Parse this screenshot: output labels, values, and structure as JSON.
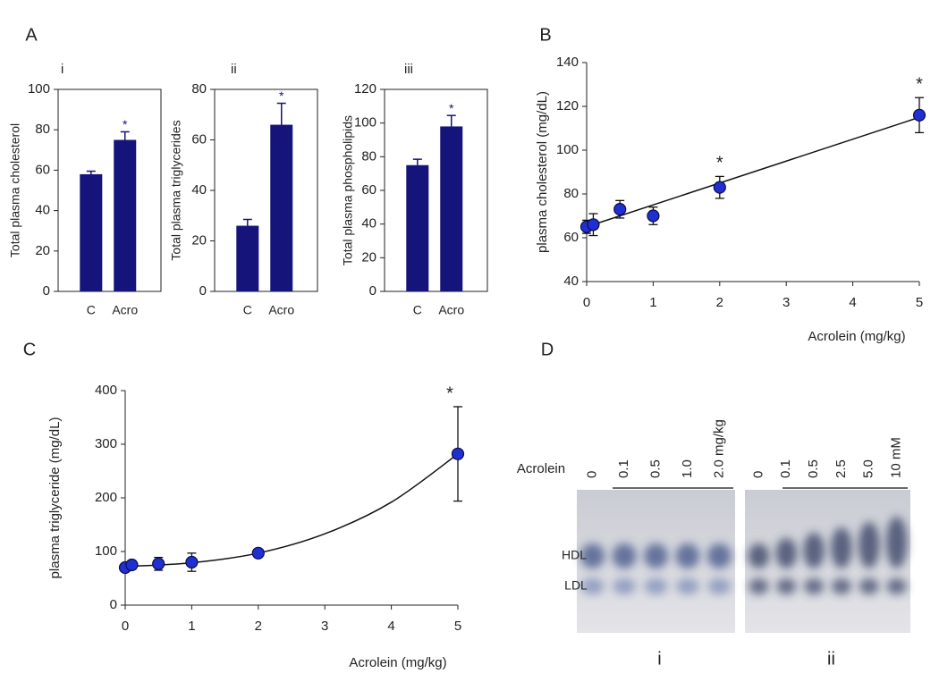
{
  "chart_data": [
    {
      "type": "bar",
      "panel": "A",
      "subtitle": "i",
      "y_label": "Total plasma cholesterol",
      "categories": [
        "C",
        "Acro"
      ],
      "values": [
        58,
        75
      ],
      "errors": [
        1.5,
        4
      ],
      "significance": [
        null,
        "*"
      ],
      "color": "#14147a",
      "ylim": [
        0,
        100
      ],
      "yticks": [
        0,
        20,
        40,
        60,
        80,
        100
      ]
    },
    {
      "type": "bar",
      "subtitle": "ii",
      "y_label": "Total plasma triglycerides",
      "categories": [
        "C",
        "Acro"
      ],
      "values": [
        26,
        66
      ],
      "errors": [
        2.5,
        8.5
      ],
      "significance": [
        null,
        "*"
      ],
      "color": "#14147a",
      "ylim": [
        0,
        80
      ],
      "yticks": [
        0,
        20,
        40,
        60,
        80
      ]
    },
    {
      "type": "bar",
      "subtitle": "iii",
      "y_label": "Total plasma phospholipids",
      "categories": [
        "C",
        "Acro"
      ],
      "values": [
        75,
        98
      ],
      "errors": [
        3.5,
        6.5
      ],
      "significance": [
        null,
        "*"
      ],
      "color": "#14147a",
      "ylim": [
        0,
        120
      ],
      "yticks": [
        0,
        20,
        40,
        60,
        80,
        100,
        120
      ]
    },
    {
      "type": "scatter",
      "panel": "B",
      "x_label": "Acrolein (mg/kg)",
      "y_label": "plasma cholesterol (mg/dL)",
      "x": [
        0,
        0.1,
        0.5,
        1,
        2,
        5
      ],
      "values": [
        65,
        66,
        73,
        70,
        83,
        116
      ],
      "errors": [
        3,
        5,
        4,
        4,
        5,
        8
      ],
      "significance": [
        null,
        null,
        null,
        null,
        "*",
        "*"
      ],
      "fit": {
        "x": [
          0,
          5
        ],
        "y": [
          65,
          115
        ]
      },
      "color": "#1f2fd0",
      "xlim": [
        0,
        5
      ],
      "xticks": [
        0,
        1,
        2,
        3,
        4,
        5
      ],
      "ylim": [
        40,
        140
      ],
      "yticks": [
        40,
        60,
        80,
        100,
        120,
        140
      ]
    },
    {
      "type": "scatter",
      "panel": "C",
      "x_label": "Acrolein (mg/kg)",
      "y_label": "plasma triglyceride (mg/dL)",
      "x": [
        0,
        0.1,
        0.5,
        1,
        2,
        5
      ],
      "values": [
        70,
        75,
        77,
        80,
        97,
        282
      ],
      "errors": [
        4,
        8,
        12,
        17,
        6,
        88
      ],
      "significance": [
        null,
        null,
        null,
        null,
        null,
        "*"
      ],
      "fit": {
        "x": [
          0,
          1,
          2,
          3,
          4,
          5
        ],
        "y": [
          72,
          79,
          97,
          133,
          192,
          282
        ]
      },
      "color": "#1f2fd0",
      "xlim": [
        0,
        5
      ],
      "xticks": [
        0,
        1,
        2,
        3,
        4,
        5
      ],
      "ylim": [
        0,
        400
      ],
      "yticks": [
        0,
        100,
        200,
        300,
        400
      ]
    }
  ],
  "gel": {
    "panel": "D",
    "row_label": "Acrolein",
    "lanes_i": [
      "0",
      "0.1",
      "0.5",
      "1.0",
      "2.0 mg/kg"
    ],
    "lanes_ii": [
      "0",
      "0.1",
      "0.5",
      "2.5",
      "5.0",
      "10 mM"
    ],
    "bands": [
      "HDL",
      "LDL"
    ],
    "gel_labels": [
      "i",
      "ii"
    ]
  }
}
